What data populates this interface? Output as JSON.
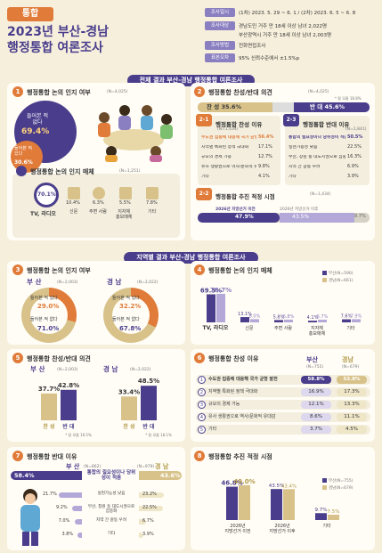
{
  "header": {
    "tag": "통합",
    "title_line1": "2023년 부산-경남",
    "title_line2": "행정통합 여론조사"
  },
  "survey_info": [
    {
      "label": "조사일시",
      "value": "(1차) 2023. 5. 29 ~ 6. 1 / (2차) 2023. 6. 5 ~ 6. 8"
    },
    {
      "label": "조사대상",
      "value": "경남도민 거주 만 18세 이상 남녀 2,022명"
    },
    {
      "label": "",
      "value": "부산광역시 거주 만 18세 이상 남녀 2,003명"
    },
    {
      "label": "조사방법",
      "value": "전화면접조사"
    },
    {
      "label": "표본오차",
      "value": "95% 신뢰수준에서 ±1.5%p"
    }
  ],
  "section1_band": "전체 결과  부산-경남 행정통합 여론조사",
  "section2_band": "지역별 결과  부산-경남 행정통합 여론조사",
  "p1": {
    "num": "1",
    "title": "행정통합 논의 인지 여부",
    "n": "(N=4,025)",
    "know_label": "들어본 적\n없다",
    "know_val": "69.4%",
    "heard_label": "들어본 적\n있다",
    "heard_val": "30.6%"
  },
  "p1b": {
    "title": "행정통합 논의 인지 매체",
    "n": "(N=1,251)",
    "items": [
      {
        "label": "TV, 라디오",
        "val": "70.1%"
      },
      {
        "label": "신문",
        "val": "10.4%"
      },
      {
        "label": "주변 사람",
        "val": "6.3%"
      },
      {
        "label": "지자체\n홍보매체",
        "val": "5.5%"
      },
      {
        "label": "기타",
        "val": "7.8%"
      }
    ]
  },
  "p2": {
    "num": "2",
    "title": "행정통합 찬성/반대 의견",
    "n": "(N=4,025)",
    "note": "* 잘 모름 18.8%",
    "pro_label": "찬 성",
    "pro_val": "35.6%",
    "con_label": "반 대",
    "con_val": "45.6%",
    "pro_reason_title": "행정통합 찬성 이유",
    "pro_n": "(N=1,434)",
    "con_reason_title": "행정통합 반대 이유",
    "con_n": "(N=1,841)",
    "pro_reasons": [
      {
        "label": "수도권 집중에 대응해 국가 균형 발전",
        "val": "56.4%"
      },
      {
        "label": "지역별 특화된 정책 극대화",
        "val": "17.1%"
      },
      {
        "label": "규모의 경제 가능",
        "val": "12.7%"
      },
      {
        "label": "유사 생활권으로 역사/문화적 유대감",
        "val": "9.8%"
      },
      {
        "label": "기타",
        "val": "4.1%"
      }
    ],
    "con_reasons": [
      {
        "label": "통합의 필요성이나 당위성이 적음",
        "val": "50.5%"
      },
      {
        "label": "실현가능성 낮음",
        "val": "22.5%"
      },
      {
        "label": "부산, 창원 등 대도시권으로 집중화",
        "val": "16.3%"
      },
      {
        "label": "지역 간 갈등 우려",
        "val": "6.9%"
      },
      {
        "label": "기타",
        "val": "3.9%"
      }
    ],
    "timing_title": "행정통합 추진 적정 시점",
    "timing_n": "(N=1,434)",
    "timing": [
      {
        "label": "2026년 지방선거 이전",
        "val": "47.9%"
      },
      {
        "label": "2026년 지방선거 이후",
        "val": "43.5%"
      },
      {
        "label": "기타",
        "val": "8.7%"
      }
    ]
  },
  "p3": {
    "num": "3",
    "title": "행정통합 논의 인지 여부",
    "busan": {
      "name": "부 산",
      "n": "(N=2,003)",
      "heard_label": "들어본 적 있다",
      "heard": "29.0%",
      "not_label": "들어본 적 없다",
      "not": "71.0%"
    },
    "gyeong": {
      "name": "경 남",
      "n": "(N=2,022)",
      "heard_label": "들어본 적 있다",
      "heard": "32.2%",
      "not_label": "들어본 적 없다",
      "not": "67.8%"
    }
  },
  "p4": {
    "num": "4",
    "title": "행정통합 논의 인지 매체",
    "legend_busan": "부산(N=590)",
    "legend_gyeong": "경남(N=661)",
    "categories": [
      "TV, 라디오",
      "신문",
      "주변 사람",
      "지자체\n홍보매체",
      "기타"
    ],
    "busan": [
      69.5,
      13.1,
      5.8,
      4.1,
      7.6
    ],
    "gyeong": [
      70.7,
      8.0,
      6.8,
      6.7,
      7.9
    ]
  },
  "p5": {
    "num": "5",
    "title": "행정통합 찬성/반대 의견",
    "busan": {
      "name": "부 산",
      "n": "(N=2,003)",
      "pro": 37.7,
      "con": 42.8,
      "pro_label": "찬 성",
      "con_label": "반 대",
      "note": "* 잘 모름 19.5%"
    },
    "gyeong": {
      "name": "경 남",
      "n": "(N=2,022)",
      "pro": 33.4,
      "con": 48.5,
      "pro_label": "찬 성",
      "con_label": "반 대",
      "note": "* 잘 모름 18.1%"
    }
  },
  "p6": {
    "num": "6",
    "title": "행정통합 찬성 이유",
    "busan_name": "부산",
    "busan_n": "(N=755)",
    "gyeong_name": "경남",
    "gyeong_n": "(N=679)",
    "rows": [
      {
        "n": "1",
        "label": "수도권 집중에 대응해 국가 균형 발전",
        "b": "58.8%",
        "g": "53.8%"
      },
      {
        "n": "2",
        "label": "지역별 특화된 정책 극대화",
        "b": "16.9%",
        "g": "17.3%"
      },
      {
        "n": "3",
        "label": "규모의 경제 가능",
        "b": "12.1%",
        "g": "13.3%"
      },
      {
        "n": "4",
        "label": "유사 생활권으로 역사/문화적 유대감",
        "b": "8.6%",
        "g": "11.1%"
      },
      {
        "n": "5",
        "label": "기타",
        "b": "3.7%",
        "g": "4.5%"
      }
    ]
  },
  "p7": {
    "num": "7",
    "title": "행정통합 반대 이유",
    "busan_name": "부 산",
    "busan_n": "(N=862)",
    "gyeong_name": "경 남",
    "gyeong_n": "(N=979)",
    "busan_top": "58.4%",
    "gyeong_top": "43.6%",
    "top_label": "통합의 필요성이나 당위성이 적음",
    "rows": [
      {
        "label": "실현가능성 낮음",
        "b": "21.7%",
        "g": "23.2%"
      },
      {
        "label": "부산, 창원 등 대도시권으로 집중화",
        "b": "9.2%",
        "g": "22.5%"
      },
      {
        "label": "지역 간 갈등 우려",
        "b": "7.0%",
        "g": "6.7%"
      },
      {
        "label": "기타",
        "b": "3.8%",
        "g": "3.9%"
      }
    ]
  },
  "p8": {
    "num": "8",
    "title": "행정통합 추진 적정 시점",
    "legend_busan": "부산(N=755)",
    "legend_gyeong": "경남(N=679)",
    "categories": [
      "2026년\n지방선거 이전",
      "2026년\n지방선거 이후",
      "기타"
    ],
    "busan": [
      46.8,
      43.5,
      9.7
    ],
    "gyeong": [
      49.0,
      43.4,
      7.5
    ]
  },
  "colors": {
    "purple": "#4a3e8c",
    "light_purple": "#b3a9d9",
    "orange": "#e07b39",
    "tan": "#d8c28a",
    "bg": "#f6efdc"
  }
}
